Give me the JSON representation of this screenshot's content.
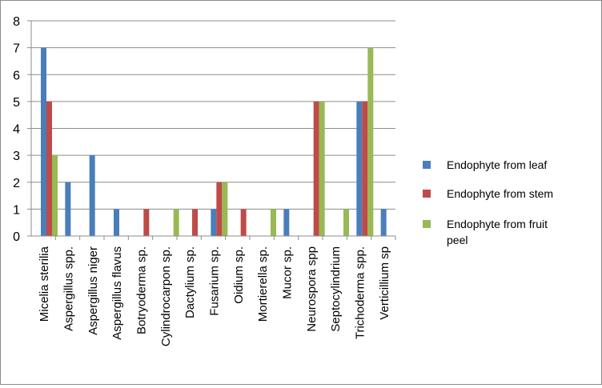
{
  "chart_data": {
    "type": "bar",
    "title": "",
    "xlabel": "",
    "ylabel": "",
    "ylim": [
      0,
      8
    ],
    "yticks": [
      0,
      1,
      2,
      3,
      4,
      5,
      6,
      7,
      8
    ],
    "grid": true,
    "legend_position": "right",
    "categories": [
      "Micelia sterilia",
      "Aspergillus spp.",
      "Aspergillus niger",
      "Aspergillus flavus",
      "Botryoderma sp.",
      "Cylindrocarpon sp.",
      "Dactylium sp.",
      "Fusarium sp.",
      "Oidium sp.",
      "Mortierella sp.",
      "Mucor sp.",
      "Neurospora spp",
      "Septocylindrium",
      "Trichoderma spp.",
      "Verticillium sp"
    ],
    "series": [
      {
        "name": "Endophyte from leaf",
        "color": "#4a7ebb",
        "values": [
          7,
          2,
          3,
          1,
          0,
          0,
          0,
          1,
          0,
          0,
          1,
          0,
          0,
          5,
          1
        ]
      },
      {
        "name": "Endophyte from stem",
        "color": "#be4b48",
        "values": [
          5,
          0,
          0,
          0,
          1,
          0,
          1,
          2,
          1,
          0,
          0,
          5,
          0,
          5,
          0
        ]
      },
      {
        "name": "Endophyte from fruit peel",
        "color": "#98b954",
        "values": [
          3,
          0,
          0,
          0,
          0,
          1,
          0,
          2,
          0,
          1,
          0,
          5,
          1,
          7,
          0
        ]
      }
    ]
  }
}
